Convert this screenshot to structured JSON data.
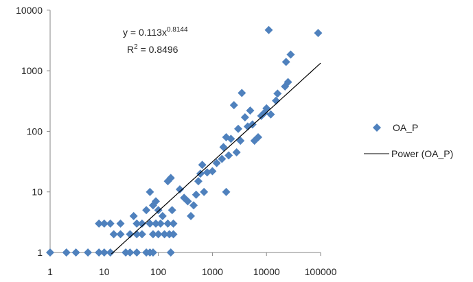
{
  "chart_data": {
    "type": "scatter",
    "title": "",
    "xlabel": "",
    "ylabel": "",
    "x_scale": "log",
    "y_scale": "log",
    "xlim": [
      1,
      100000
    ],
    "ylim": [
      1,
      10000
    ],
    "x_ticks": [
      "1",
      "10",
      "100",
      "1000",
      "10000",
      "100000"
    ],
    "y_ticks": [
      "1",
      "10",
      "100",
      "1000",
      "10000"
    ],
    "grid": false,
    "legend_position": "right",
    "series": [
      {
        "name": "OA_P",
        "marker": "diamond",
        "color": "#4F81BD",
        "points": [
          [
            1,
            1
          ],
          [
            2,
            1
          ],
          [
            3,
            1
          ],
          [
            5,
            1
          ],
          [
            8,
            1
          ],
          [
            10,
            1
          ],
          [
            13,
            1
          ],
          [
            25,
            1
          ],
          [
            30,
            1
          ],
          [
            40,
            1
          ],
          [
            60,
            1
          ],
          [
            70,
            1
          ],
          [
            80,
            1
          ],
          [
            170,
            1
          ],
          [
            8,
            3
          ],
          [
            10,
            3
          ],
          [
            13,
            3
          ],
          [
            20,
            3
          ],
          [
            40,
            3
          ],
          [
            50,
            3
          ],
          [
            70,
            3
          ],
          [
            90,
            3
          ],
          [
            110,
            3
          ],
          [
            150,
            3
          ],
          [
            190,
            3
          ],
          [
            15,
            2
          ],
          [
            20,
            2
          ],
          [
            30,
            2
          ],
          [
            40,
            2
          ],
          [
            50,
            2
          ],
          [
            80,
            2
          ],
          [
            100,
            2
          ],
          [
            130,
            2
          ],
          [
            160,
            2
          ],
          [
            190,
            2
          ],
          [
            35,
            4
          ],
          [
            60,
            5
          ],
          [
            70,
            10
          ],
          [
            80,
            6
          ],
          [
            90,
            7
          ],
          [
            100,
            5
          ],
          [
            120,
            4
          ],
          [
            150,
            15
          ],
          [
            170,
            17
          ],
          [
            180,
            5
          ],
          [
            250,
            11
          ],
          [
            300,
            8
          ],
          [
            350,
            7
          ],
          [
            400,
            4
          ],
          [
            450,
            6
          ],
          [
            500,
            9
          ],
          [
            550,
            15
          ],
          [
            600,
            20
          ],
          [
            650,
            28
          ],
          [
            700,
            10
          ],
          [
            800,
            21
          ],
          [
            1000,
            22
          ],
          [
            1200,
            30
          ],
          [
            1500,
            35
          ],
          [
            1600,
            55
          ],
          [
            1800,
            80
          ],
          [
            1800,
            10
          ],
          [
            2000,
            40
          ],
          [
            2200,
            75
          ],
          [
            2500,
            270
          ],
          [
            2800,
            45
          ],
          [
            3000,
            110
          ],
          [
            3300,
            70
          ],
          [
            3500,
            430
          ],
          [
            4000,
            170
          ],
          [
            4500,
            120
          ],
          [
            5000,
            220
          ],
          [
            5500,
            130
          ],
          [
            6000,
            70
          ],
          [
            7000,
            80
          ],
          [
            8000,
            180
          ],
          [
            9000,
            200
          ],
          [
            10000,
            240
          ],
          [
            11000,
            4700
          ],
          [
            12000,
            190
          ],
          [
            15000,
            320
          ],
          [
            16000,
            420
          ],
          [
            22000,
            550
          ],
          [
            23000,
            1400
          ],
          [
            25000,
            650
          ],
          [
            28000,
            1850
          ],
          [
            90000,
            4200
          ]
        ]
      },
      {
        "name": "Power (OA_P)",
        "type": "line",
        "color": "#000000",
        "equation": "y = 0.113x^0.8144",
        "coef": 0.113,
        "exponent": 0.8144,
        "r2": 0.8496,
        "x_range": [
          13.6,
          100000
        ]
      }
    ],
    "annotations": {
      "equation_prefix": "y = 0.113x",
      "equation_exponent": "0.8144",
      "r2_prefix": "R",
      "r2_sup": "2",
      "r2_value": " = 0.8496"
    }
  },
  "legend": {
    "items": [
      {
        "label": "OA_P"
      },
      {
        "label": "Power (OA_P)"
      }
    ]
  }
}
